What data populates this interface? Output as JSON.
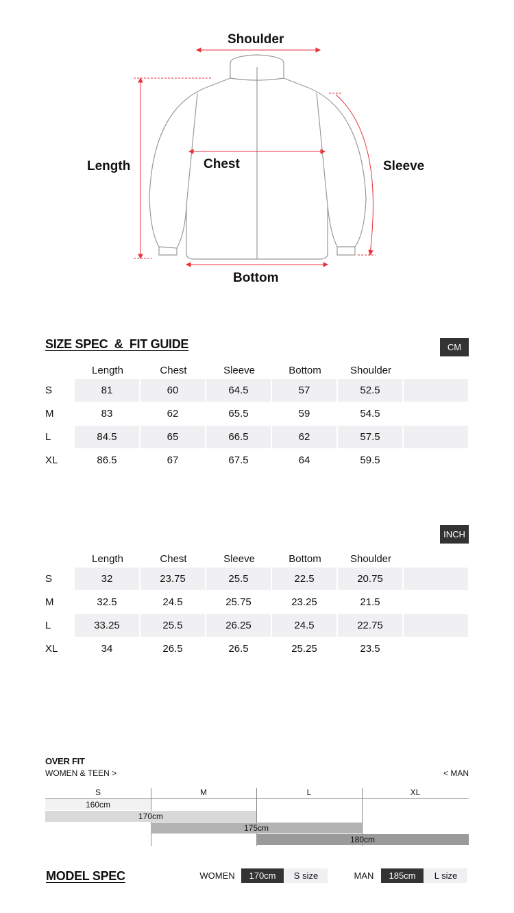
{
  "diagram": {
    "labels": {
      "shoulder": "Shoulder",
      "length": "Length",
      "chest": "Chest",
      "sleeve": "Sleeve",
      "bottom": "Bottom"
    },
    "measure_color": "#e8323c"
  },
  "size_spec": {
    "title": "SIZE SPEC  &  FIT GUIDE",
    "columns": [
      "Length",
      "Chest",
      "Sleeve",
      "Bottom",
      "Shoulder"
    ],
    "cm": {
      "unit": "CM",
      "rows": [
        {
          "size": "S",
          "values": [
            "81",
            "60",
            "64.5",
            "57",
            "52.5"
          ]
        },
        {
          "size": "M",
          "values": [
            "83",
            "62",
            "65.5",
            "59",
            "54.5"
          ]
        },
        {
          "size": "L",
          "values": [
            "84.5",
            "65",
            "66.5",
            "62",
            "57.5"
          ]
        },
        {
          "size": "XL",
          "values": [
            "86.5",
            "67",
            "67.5",
            "64",
            "59.5"
          ]
        }
      ]
    },
    "inch": {
      "unit": "INCH",
      "rows": [
        {
          "size": "S",
          "values": [
            "32",
            "23.75",
            "25.5",
            "22.5",
            "20.75"
          ]
        },
        {
          "size": "M",
          "values": [
            "32.5",
            "24.5",
            "25.75",
            "23.25",
            "21.5"
          ]
        },
        {
          "size": "L",
          "values": [
            "33.25",
            "25.5",
            "26.25",
            "24.5",
            "22.75"
          ]
        },
        {
          "size": "XL",
          "values": [
            "34",
            "26.5",
            "26.5",
            "25.25",
            "23.5"
          ]
        }
      ]
    }
  },
  "fit_guide": {
    "title": "OVER FIT",
    "left_label": "WOMEN & TEEN >",
    "right_label": "< MAN",
    "sizes": [
      "S",
      "M",
      "L",
      "XL"
    ],
    "bars": [
      {
        "label": "160cm",
        "from": "S",
        "to": "S",
        "color": "#f2f2f2"
      },
      {
        "label": "170cm",
        "from": "S",
        "to": "M",
        "color": "#d9d9d9"
      },
      {
        "label": "175cm",
        "from": "M",
        "to": "L",
        "color": "#b3b3b3"
      },
      {
        "label": "180cm",
        "from": "L",
        "to": "XL",
        "color": "#9a9a9a"
      }
    ]
  },
  "model_spec": {
    "title": "MODEL SPEC",
    "women": {
      "label": "WOMEN",
      "height": "170cm",
      "size": "S size"
    },
    "man": {
      "label": "MAN",
      "height": "185cm",
      "size": "L size"
    }
  }
}
